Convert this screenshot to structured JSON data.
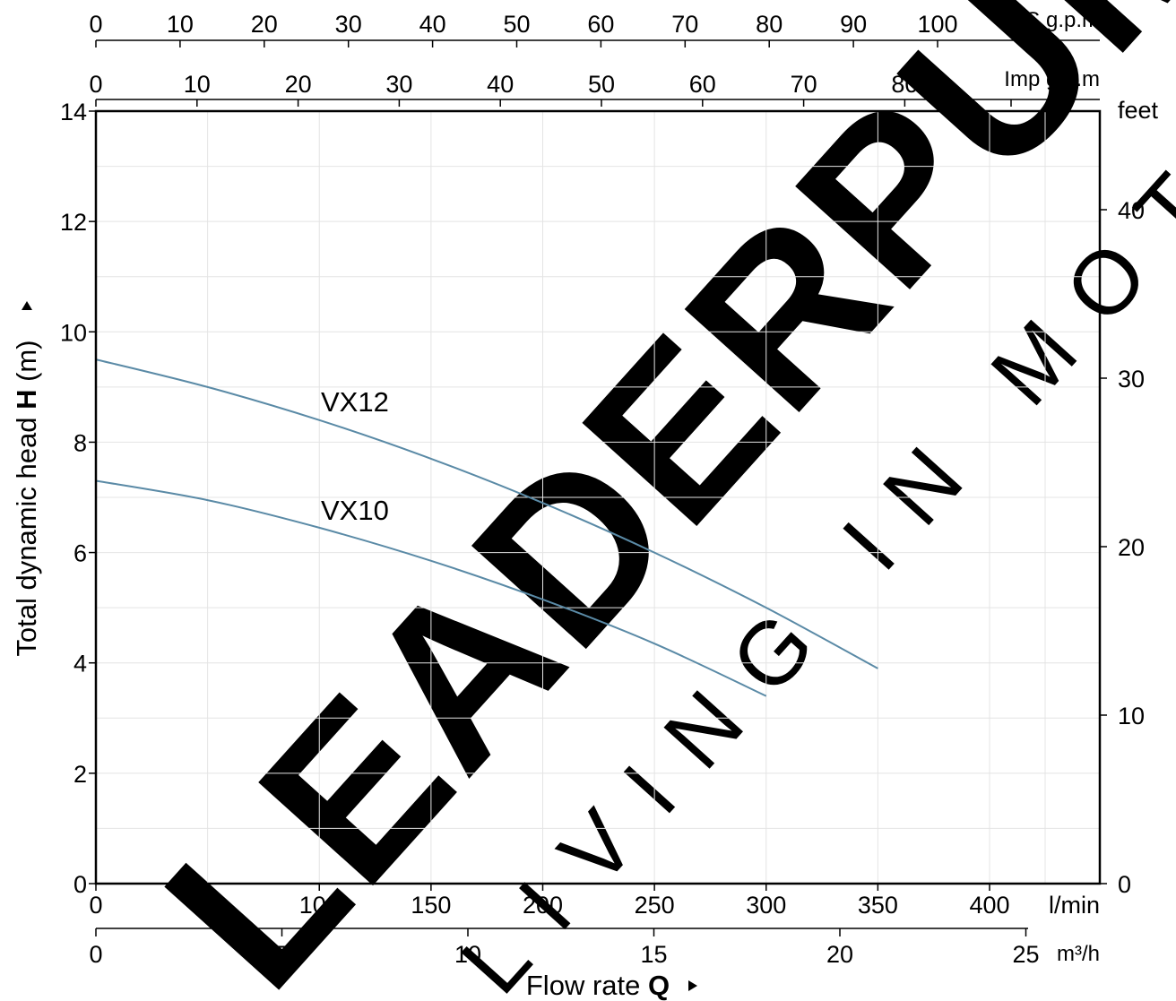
{
  "chart_data": {
    "type": "line",
    "title": "",
    "xlabel": "Flow rate",
    "xlabel_symbol": "Q",
    "ylabel": "Total dynamic head",
    "ylabel_symbol": "H",
    "ylabel_unit": "(m)",
    "xlim": [
      0,
      450
    ],
    "ylim": [
      0,
      14
    ],
    "grid": true,
    "series": [
      {
        "name": "VX12",
        "color": "#5a8aa6",
        "x": [
          0,
          50,
          100,
          150,
          200,
          250,
          300,
          350
        ],
        "y": [
          9.5,
          9.0,
          8.4,
          7.7,
          6.9,
          6.0,
          5.0,
          3.9
        ]
      },
      {
        "name": "VX10",
        "color": "#5a8aa6",
        "x": [
          0,
          50,
          100,
          150,
          200,
          250,
          300
        ],
        "y": [
          7.3,
          6.95,
          6.45,
          5.85,
          5.15,
          4.35,
          3.4
        ]
      }
    ],
    "axes": {
      "lmin": {
        "unit": "l/min",
        "ticks": [
          "0",
          "50",
          "100",
          "150",
          "200",
          "250",
          "300",
          "350",
          "400"
        ],
        "values": [
          0,
          50,
          100,
          150,
          200,
          250,
          300,
          350,
          400
        ]
      },
      "m3h": {
        "unit": "m³/h",
        "ticks": [
          "0",
          "5",
          "10",
          "15",
          "20",
          "25"
        ],
        "values": [
          0,
          5,
          10,
          15,
          20,
          25
        ]
      },
      "usgpm": {
        "unit": "US g.p.m",
        "ticks": [
          "0",
          "10",
          "20",
          "30",
          "40",
          "50",
          "60",
          "70",
          "80",
          "90",
          "100"
        ],
        "values": [
          0,
          10,
          20,
          30,
          40,
          50,
          60,
          70,
          80,
          90,
          100
        ]
      },
      "impgpm": {
        "unit": "Imp g.p.m",
        "ticks": [
          "0",
          "10",
          "20",
          "30",
          "40",
          "50",
          "60",
          "70",
          "80"
        ],
        "values": [
          0,
          10,
          20,
          30,
          40,
          50,
          60,
          70,
          80
        ]
      },
      "meters": {
        "ticks": [
          "0",
          "2",
          "4",
          "6",
          "8",
          "10",
          "12",
          "14"
        ],
        "values": [
          0,
          2,
          4,
          6,
          8,
          10,
          12,
          14
        ]
      },
      "feet": {
        "unit": "feet",
        "ticks": [
          "0",
          "10",
          "20",
          "30",
          "40"
        ],
        "values": [
          0,
          10,
          20,
          30,
          40
        ]
      }
    },
    "colors": {
      "curve": "#5a8aa6",
      "grid": "#e4e4e4",
      "axis": "#000000",
      "watermark": "#f2f2f2"
    },
    "watermark": {
      "brand": "LEADERPUMPS",
      "tagline": "LIVING IN MOTION"
    }
  }
}
